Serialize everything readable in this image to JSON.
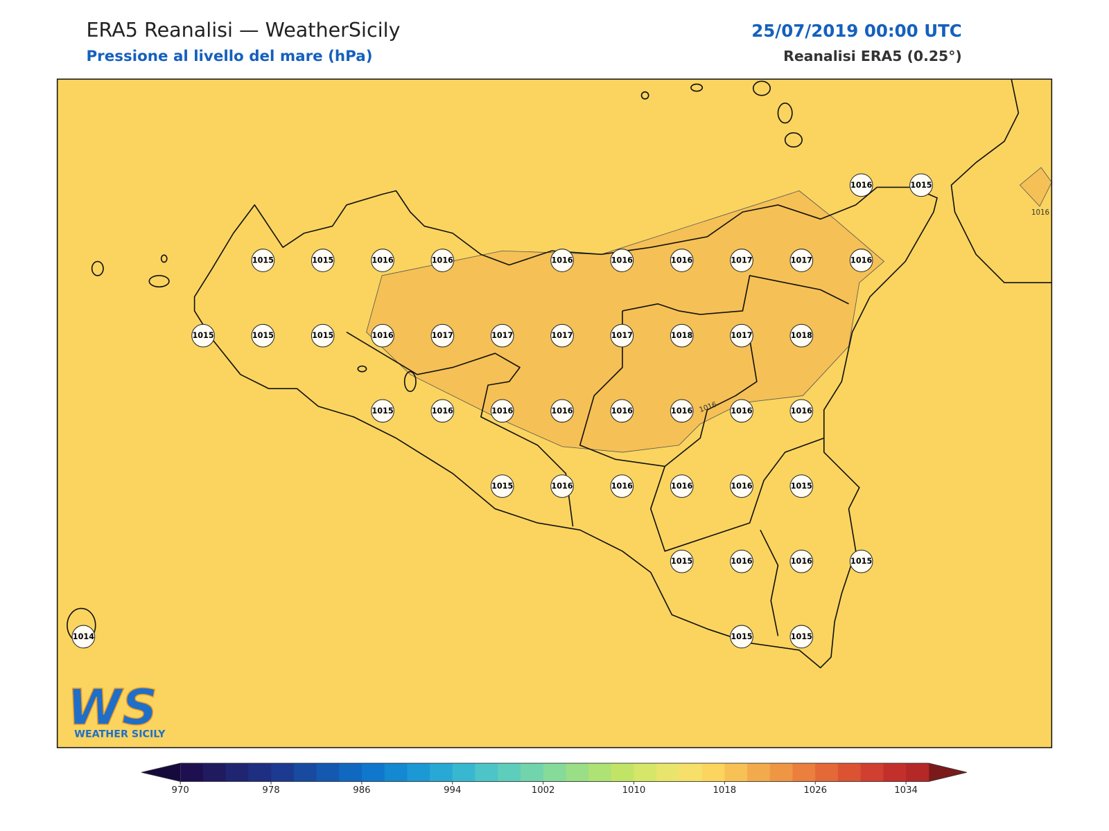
{
  "header": {
    "title": "ERA5 Reanalisi — WeatherSicily",
    "subtitle": "Pressione al livello del mare (hPa)",
    "date": "25/07/2019 00:00 UTC",
    "source": "Reanalisi ERA5 (0.25°)"
  },
  "stations": [
    [
      null,
      null,
      null,
      null,
      null,
      null,
      null,
      null,
      null,
      null,
      null,
      null,
      null,
      1016,
      1015
    ],
    [
      null,
      null,
      null,
      1015,
      1015,
      1016,
      1016,
      null,
      1016,
      1016,
      1016,
      1017,
      1017,
      1016,
      null
    ],
    [
      null,
      null,
      1015,
      1015,
      1015,
      1016,
      1017,
      1017,
      1017,
      1017,
      1018,
      1017,
      1018,
      null,
      null
    ],
    [
      null,
      null,
      null,
      null,
      null,
      1015,
      1016,
      1016,
      1016,
      1016,
      1016,
      1016,
      1016,
      null,
      null
    ],
    [
      null,
      null,
      null,
      null,
      null,
      null,
      null,
      1015,
      1016,
      1016,
      1016,
      1016,
      1015,
      null,
      null
    ],
    [
      null,
      null,
      null,
      null,
      null,
      null,
      null,
      null,
      null,
      null,
      1015,
      1016,
      1016,
      1015,
      null
    ],
    [
      1014,
      null,
      null,
      null,
      null,
      null,
      null,
      null,
      null,
      null,
      null,
      1015,
      1015,
      null,
      null
    ]
  ],
  "contour_labels": [
    1016,
    1016
  ],
  "logo": {
    "mark": "WS",
    "name": "WEATHER SICILY"
  },
  "colorbar": {
    "lim": [
      970,
      1036
    ],
    "ticks": [
      970,
      978,
      986,
      994,
      1002,
      1010,
      1018,
      1026,
      1034
    ],
    "colors": [
      "#1e1050",
      "#1f1b5e",
      "#1f2570",
      "#1e2e80",
      "#1b3a90",
      "#184aa0",
      "#1458b0",
      "#1168c0",
      "#0f78cc",
      "#1488d0",
      "#1c98d4",
      "#28a8d4",
      "#38b8d0",
      "#4cc4c8",
      "#5ecdbc",
      "#72d4ac",
      "#86da9a",
      "#9ade86",
      "#aee274",
      "#c2e466",
      "#d6e668",
      "#e8e46c",
      "#f7e06a",
      "#fbd55e",
      "#f7c155",
      "#f3aa4c",
      "#ef9644",
      "#ea7f3e",
      "#e46838",
      "#dc5334",
      "#d03f30",
      "#c3302c",
      "#b52828"
    ],
    "extend_colors": {
      "min": "#160a3c",
      "max": "#7a1a1a"
    }
  }
}
